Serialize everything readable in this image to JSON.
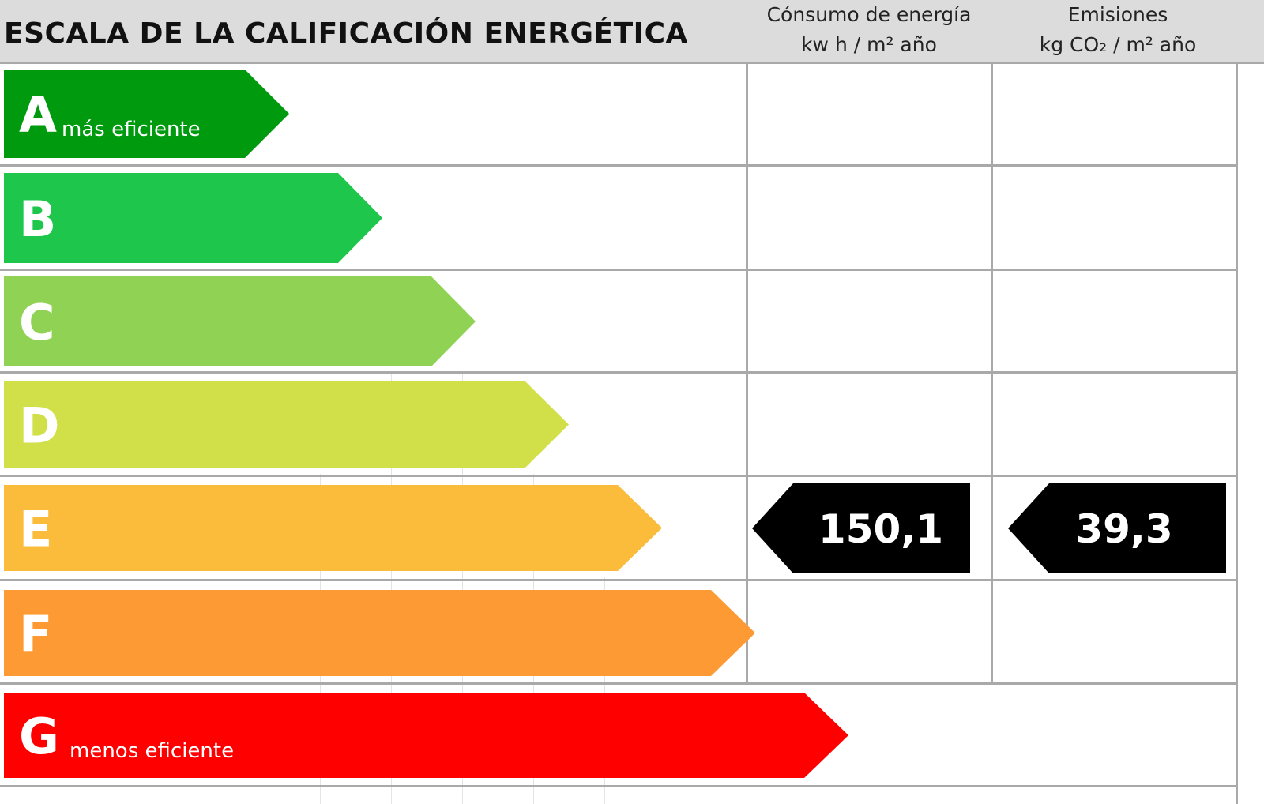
{
  "title": "ESCALA DE LA CALIFICACIÓN ENERGÉTICA",
  "columns": {
    "energy": {
      "line1": "Cónsumo de energía",
      "line2": "kw h / m² año"
    },
    "emissions": {
      "line1": "Emisiones",
      "line2": "kg CO₂ / m² año"
    }
  },
  "chart_data": {
    "type": "table",
    "title": "ESCALA DE LA CALIFICACIÓN ENERGÉTICA",
    "ratings": [
      {
        "letter": "A",
        "sublabel": "más eficiente",
        "color": "#009a0f"
      },
      {
        "letter": "B",
        "sublabel": "",
        "color": "#1ec64c"
      },
      {
        "letter": "C",
        "sublabel": "",
        "color": "#8fd254"
      },
      {
        "letter": "D",
        "sublabel": "",
        "color": "#d1df48"
      },
      {
        "letter": "E",
        "sublabel": "",
        "color": "#fbbc3b"
      },
      {
        "letter": "F",
        "sublabel": "",
        "color": "#fd9a33"
      },
      {
        "letter": "G",
        "sublabel": "menos eficiente",
        "color": "#fe0000"
      }
    ],
    "result": {
      "rating": "E",
      "energy_consumption": "150,1",
      "emissions": "39,3",
      "marker_color": "#000000"
    }
  }
}
